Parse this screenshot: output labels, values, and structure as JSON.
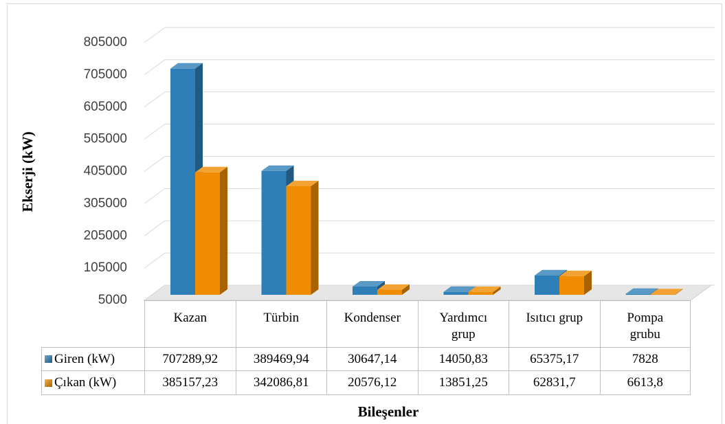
{
  "chart_data": {
    "type": "bar3d",
    "categories": [
      "Kazan",
      "Türbin",
      "Kondenser",
      "Yardımcı grup",
      "Isıtıcı grup",
      "Pompa grubu"
    ],
    "series": [
      {
        "name": "Giren (kW)",
        "color": "#2e7fb8",
        "values": [
          707289.92,
          389469.94,
          30647.14,
          14050.83,
          65375.17,
          7828
        ],
        "value_labels": [
          "707289,92",
          "389469,94",
          "30647,14",
          "14050,83",
          "65375,17",
          "7828"
        ]
      },
      {
        "name": "Çıkan (kW)",
        "color": "#f08c00",
        "values": [
          385157.23,
          342086.81,
          20576.12,
          13851.25,
          62831.7,
          6613.8
        ],
        "value_labels": [
          "385157,23",
          "342086,81",
          "20576,12",
          "13851,25",
          "62831,7",
          "6613,8"
        ]
      }
    ],
    "y_label": "Ekserji (kW)",
    "x_label": "Bileşenler",
    "ylim": [
      5000,
      805000
    ],
    "yticks": [
      5000,
      105000,
      205000,
      305000,
      405000,
      505000,
      605000,
      705000,
      805000
    ],
    "grid": true
  }
}
